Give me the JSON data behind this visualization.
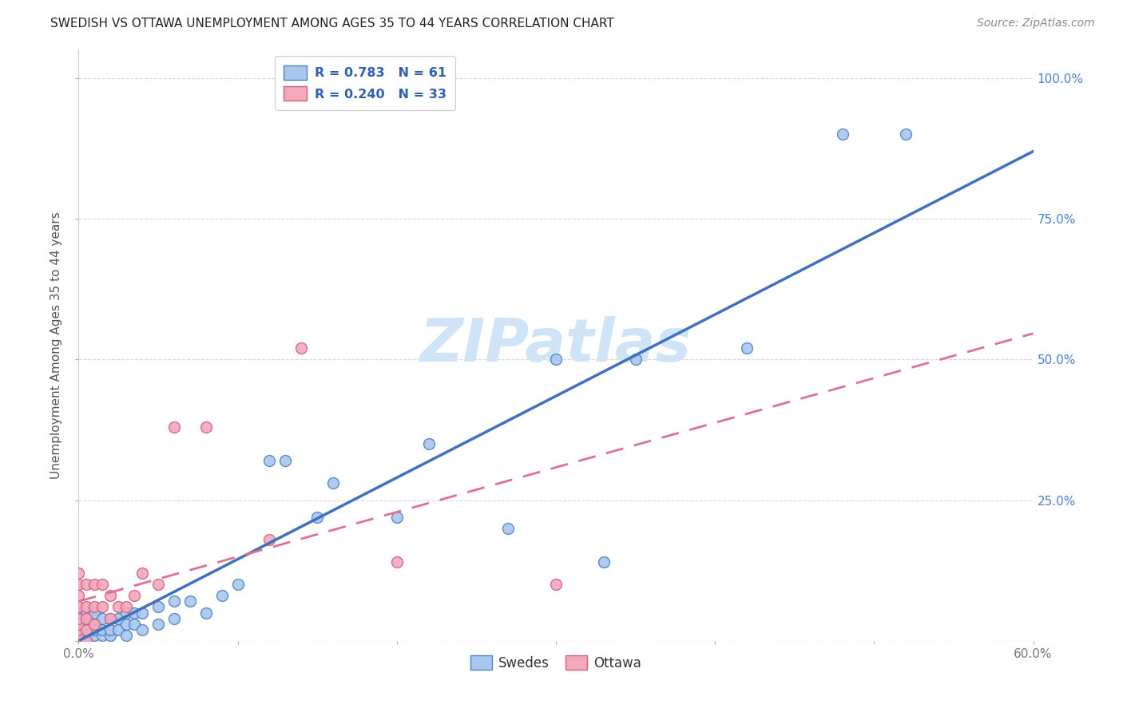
{
  "title": "SWEDISH VS OTTAWA UNEMPLOYMENT AMONG AGES 35 TO 44 YEARS CORRELATION CHART",
  "source": "Source: ZipAtlas.com",
  "ylabel": "Unemployment Among Ages 35 to 44 years",
  "xlim": [
    0.0,
    0.6
  ],
  "ylim": [
    0.0,
    1.05
  ],
  "yticks": [
    0.0,
    0.25,
    0.5,
    0.75,
    1.0
  ],
  "ytick_labels": [
    "",
    "25.0%",
    "50.0%",
    "75.0%",
    "100.0%"
  ],
  "xticks": [
    0.0,
    0.1,
    0.2,
    0.3,
    0.4,
    0.5,
    0.6
  ],
  "xtick_labels": [
    "0.0%",
    "",
    "",
    "",
    "",
    "",
    "60.0%"
  ],
  "swedes_color": "#a8c8f0",
  "ottawa_color": "#f4a8bc",
  "swedes_edge_color": "#5080c0",
  "ottawa_edge_color": "#d06080",
  "swedes_line_color": "#4070c0",
  "ottawa_line_color": "#e07090",
  "legend_text_color": "#3060b0",
  "watermark_color": "#d0e4f8",
  "swedes_x": [
    0.0,
    0.0,
    0.0,
    0.0,
    0.0,
    0.0,
    0.0,
    0.0,
    0.0,
    0.0,
    0.005,
    0.005,
    0.005,
    0.005,
    0.005,
    0.005,
    0.01,
    0.01,
    0.01,
    0.01,
    0.01,
    0.015,
    0.015,
    0.015,
    0.02,
    0.02,
    0.02,
    0.025,
    0.025,
    0.03,
    0.03,
    0.03,
    0.035,
    0.035,
    0.04,
    0.04,
    0.05,
    0.05,
    0.06,
    0.06,
    0.07,
    0.08,
    0.09,
    0.1,
    0.12,
    0.13,
    0.15,
    0.16,
    0.2,
    0.22,
    0.27,
    0.3,
    0.33,
    0.35,
    0.42,
    0.48,
    0.52
  ],
  "swedes_y": [
    0.0,
    0.0,
    0.0,
    0.01,
    0.01,
    0.02,
    0.02,
    0.03,
    0.04,
    0.05,
    0.0,
    0.01,
    0.02,
    0.03,
    0.04,
    0.05,
    0.01,
    0.02,
    0.03,
    0.04,
    0.05,
    0.01,
    0.02,
    0.04,
    0.01,
    0.02,
    0.04,
    0.02,
    0.04,
    0.01,
    0.03,
    0.05,
    0.03,
    0.05,
    0.02,
    0.05,
    0.03,
    0.06,
    0.04,
    0.07,
    0.07,
    0.05,
    0.08,
    0.1,
    0.32,
    0.32,
    0.22,
    0.28,
    0.22,
    0.35,
    0.2,
    0.5,
    0.14,
    0.5,
    0.52,
    0.9,
    0.9
  ],
  "ottawa_x": [
    0.0,
    0.0,
    0.0,
    0.0,
    0.0,
    0.0,
    0.0,
    0.0,
    0.0,
    0.0,
    0.005,
    0.005,
    0.005,
    0.005,
    0.005,
    0.01,
    0.01,
    0.01,
    0.015,
    0.015,
    0.02,
    0.02,
    0.025,
    0.03,
    0.035,
    0.04,
    0.05,
    0.06,
    0.08,
    0.12,
    0.14,
    0.2,
    0.3
  ],
  "ottawa_y": [
    0.0,
    0.0,
    0.01,
    0.02,
    0.03,
    0.04,
    0.06,
    0.08,
    0.1,
    0.12,
    0.0,
    0.02,
    0.04,
    0.06,
    0.1,
    0.03,
    0.06,
    0.1,
    0.06,
    0.1,
    0.04,
    0.08,
    0.06,
    0.06,
    0.08,
    0.12,
    0.1,
    0.38,
    0.38,
    0.18,
    0.52,
    0.14,
    0.1
  ]
}
